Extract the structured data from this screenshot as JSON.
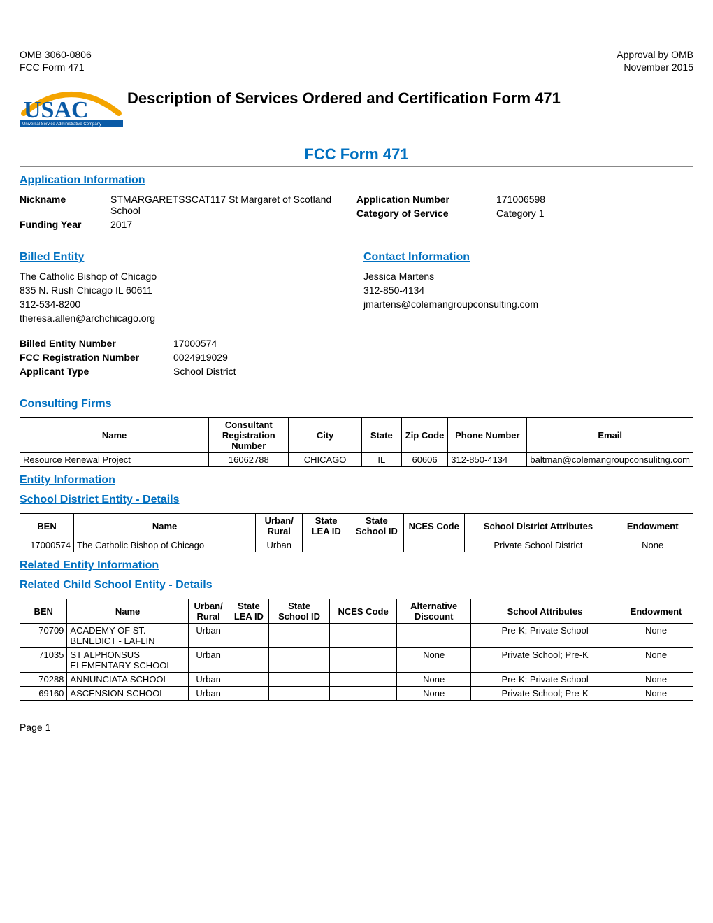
{
  "header": {
    "left_1": "OMB 3060-0806",
    "left_2": "FCC Form 471",
    "right_1": "Approval by OMB",
    "right_2": "November 2015"
  },
  "logo": {
    "text_main": "USAC",
    "text_sub": "Universal Service Administrative Company",
    "arc_color": "#f4a400",
    "text_color": "#0a5aa6",
    "band_color": "#0a5aa6",
    "sub_color": "#ffffff"
  },
  "titles": {
    "main": "Description of Services Ordered and Certification Form 471",
    "form": "FCC Form 471"
  },
  "app_info": {
    "heading": "Application Information",
    "nickname_label": "Nickname",
    "nickname_value": "STMARGARETSSCAT117 St Margaret of Scotland School",
    "app_num_label": "Application Number",
    "app_num_value": "171006598",
    "funding_year_label": "Funding Year",
    "funding_year_value": "2017",
    "cat_label": "Category of Service",
    "cat_value": "Category 1"
  },
  "billed_entity": {
    "heading": "Billed Entity",
    "name": "The Catholic Bishop of Chicago",
    "address": "835 N. Rush  Chicago IL 60611",
    "phone": "312-534-8200",
    "email": "theresa.allen@archchicago.org",
    "ben_label": "Billed Entity Number",
    "ben_value": "17000574",
    "fcc_reg_label": "FCC Registration Number",
    "fcc_reg_value": "0024919029",
    "applicant_type_label": "Applicant Type",
    "applicant_type_value": "School District"
  },
  "contact": {
    "heading": "Contact Information",
    "name": "Jessica Martens",
    "phone": "312-850-4134",
    "email": "jmartens@colemangroupconsulting.com"
  },
  "consulting": {
    "heading": "Consulting Firms",
    "columns": [
      "Name",
      "Consultant Registration Number",
      "City",
      "State",
      "Zip Code",
      "Phone Number",
      "Email"
    ],
    "col_widths": [
      "29%",
      "12%",
      "11%",
      "6%",
      "7%",
      "12%",
      "23%"
    ],
    "col_align": [
      "left",
      "center",
      "center",
      "center",
      "center",
      "left",
      "left"
    ],
    "rows": [
      [
        "Resource Renewal Project",
        "16062788",
        "CHICAGO",
        "IL",
        "60606",
        "312-850-4134",
        "baltman@colemangroupconsulitng.com"
      ]
    ]
  },
  "entity_info_heading": "Entity Information",
  "district_details": {
    "heading": "School District Entity - Details",
    "columns": [
      "BEN",
      "Name",
      "Urban/ Rural",
      "State LEA ID",
      "State School ID",
      "NCES Code",
      "School District Attributes",
      "Endowment"
    ],
    "col_widths": [
      "8%",
      "27%",
      "7%",
      "7%",
      "8%",
      "9%",
      "22%",
      "12%"
    ],
    "col_align": [
      "right",
      "left",
      "center",
      "center",
      "center",
      "center",
      "center",
      "center"
    ],
    "rows": [
      [
        "17000574",
        "The Catholic Bishop of Chicago",
        "Urban",
        "",
        "",
        "",
        "Private School District",
        "None"
      ]
    ]
  },
  "related_heading": "Related Entity Information",
  "child_details": {
    "heading": "Related Child School Entity - Details",
    "columns": [
      "BEN",
      "Name",
      "Urban/ Rural",
      "State LEA ID",
      "State School ID",
      "NCES Code",
      "Alternative Discount",
      "School Attributes",
      "Endowment"
    ],
    "col_widths": [
      "7%",
      "18%",
      "6%",
      "6%",
      "9%",
      "10%",
      "11%",
      "22%",
      "11%"
    ],
    "col_align": [
      "right",
      "left",
      "center",
      "center",
      "center",
      "center",
      "center",
      "center",
      "center"
    ],
    "rows": [
      [
        "70709",
        "ACADEMY OF ST. BENEDICT - LAFLIN",
        "Urban",
        "",
        "",
        "",
        "",
        "Pre-K; Private School",
        "None"
      ],
      [
        "71035",
        "ST ALPHONSUS ELEMENTARY SCHOOL",
        "Urban",
        "",
        "",
        "",
        "None",
        "Private School; Pre-K",
        "None"
      ],
      [
        "70288",
        "ANNUNCIATA SCHOOL",
        "Urban",
        "",
        "",
        "",
        "None",
        "Pre-K; Private School",
        "None"
      ],
      [
        "69160",
        "ASCENSION SCHOOL",
        "Urban",
        "",
        "",
        "",
        "None",
        "Private School; Pre-K",
        "None"
      ]
    ]
  },
  "footer": {
    "page": "Page 1"
  }
}
